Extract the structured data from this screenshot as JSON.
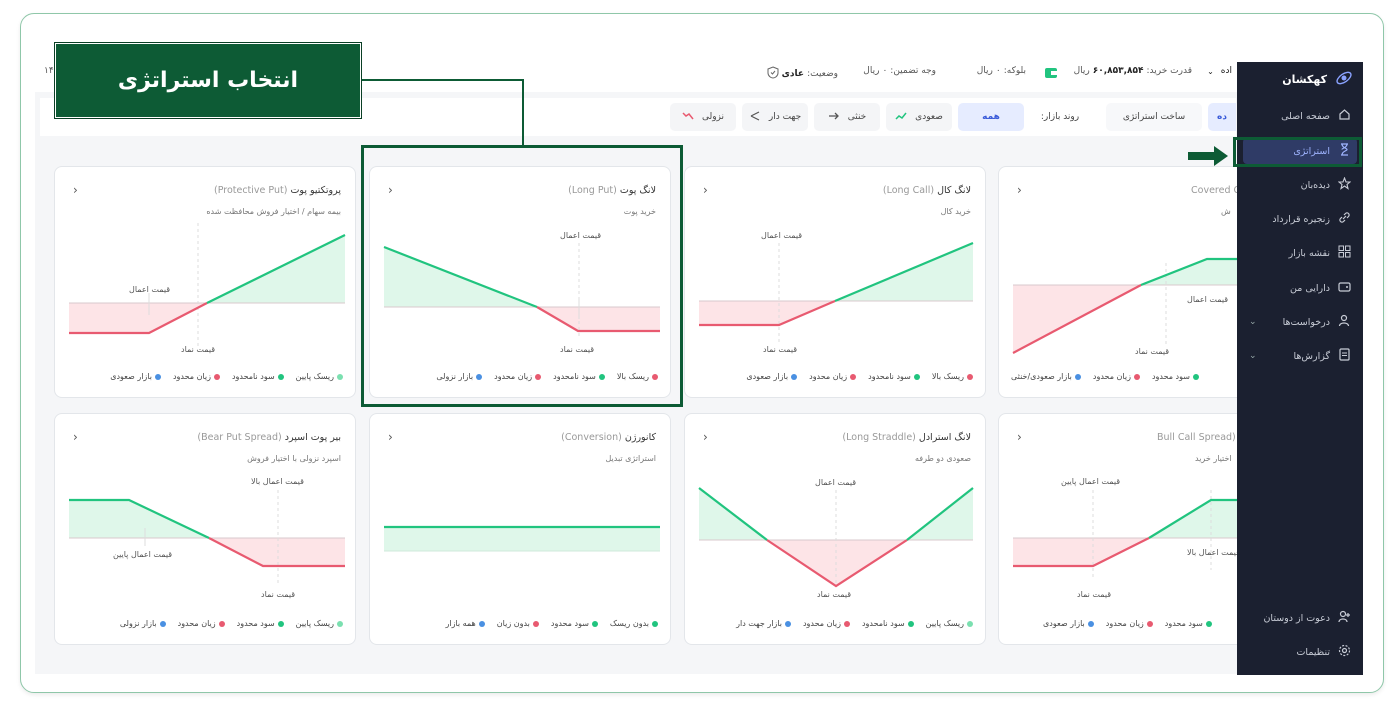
{
  "callout": {
    "text": "انتخاب استراتژی"
  },
  "sidebar": {
    "brand": "کهکشان",
    "items": [
      {
        "label": "صفحه اصلی",
        "icon": "home-icon"
      },
      {
        "label": "استراتژی",
        "icon": "hourglass-icon",
        "active": true
      },
      {
        "label": "دیده‌بان",
        "icon": "star-icon"
      },
      {
        "label": "زنجیره قرارداد",
        "icon": "link-icon"
      },
      {
        "label": "نقشه بازار",
        "icon": "grid-icon"
      },
      {
        "label": "دارایی من",
        "icon": "wallet-icon"
      },
      {
        "label": "درخواست‌ها",
        "icon": "requests-icon",
        "expandable": true
      },
      {
        "label": "گزارش‌ها",
        "icon": "report-icon",
        "expandable": true
      }
    ],
    "bottom": [
      {
        "label": "دعوت از دوستان",
        "icon": "add-user-icon"
      },
      {
        "label": "تنظیمات",
        "icon": "gear-icon"
      }
    ]
  },
  "topbar": {
    "partial_left": "۱۴",
    "account_partial": "اده",
    "buying_power_label": "قدرت خرید:",
    "buying_power_value": "۶۰,۸۵۳,۸۵۴",
    "currency": "ریال",
    "blocked_label": "بلوکه:",
    "blocked_value": "۰",
    "margin_label": "وجه تضمین:",
    "margin_value": "۰",
    "status_label": "وضعیت:",
    "status_value": "عادی"
  },
  "filters": {
    "partial_tab": "ده",
    "build_strategy": "ساخت استراتژی",
    "market_trend_label": "روند بازار:",
    "buttons": [
      {
        "label": "همه",
        "selected": true
      },
      {
        "label": "صعودی",
        "icon": "trend-up-icon"
      },
      {
        "label": "خنثی",
        "icon": "arrow-right-icon"
      },
      {
        "label": "جهت دار",
        "icon": "directional-icon"
      },
      {
        "label": "نزولی",
        "icon": "trend-down-icon"
      }
    ]
  },
  "cards": [
    {
      "title": "لانگ پوت",
      "en": "(Long Put)",
      "sub": "خرید پوت",
      "labels": [
        "قیمت اعمال",
        "قیمت نماد"
      ],
      "legend": [
        {
          "t": "ریسک بالا",
          "c": "#e85a70"
        },
        {
          "t": "سود نامحدود",
          "c": "#21c47f"
        },
        {
          "t": "زیان محدود",
          "c": "#e85a70"
        },
        {
          "t": "بازار نزولی",
          "c": "#4a90e2"
        }
      ]
    },
    {
      "title": "لانگ کال",
      "en": "(Long Call)",
      "sub": "خرید کال",
      "labels": [
        "قیمت اعمال",
        "قیمت نماد"
      ],
      "legend": [
        {
          "t": "ریسک بالا",
          "c": "#e85a70"
        },
        {
          "t": "سود نامحدود",
          "c": "#21c47f"
        },
        {
          "t": "زیان محدود",
          "c": "#e85a70"
        },
        {
          "t": "بازار صعودی",
          "c": "#4a90e2"
        }
      ]
    },
    {
      "title": "پروتکتیو پوت",
      "en": "(Protective Put)",
      "sub": "بیمه سهام / اختیار فروش محافظت شده",
      "labels": [
        "قیمت اعمال",
        "قیمت نماد"
      ],
      "legend": [
        {
          "t": "ریسک پایین",
          "c": "#7be0b0"
        },
        {
          "t": "سود نامحدود",
          "c": "#21c47f"
        },
        {
          "t": "زیان محدود",
          "c": "#e85a70"
        },
        {
          "t": "بازار صعودی",
          "c": "#4a90e2"
        }
      ]
    },
    {
      "title": "",
      "en": "Covered C",
      "sub": "ش",
      "labels": [
        "قیمت اعمال",
        "قیمت نماد"
      ],
      "legend": [
        {
          "t": "",
          "c": "#21c47f"
        },
        {
          "t": "سود محدود",
          "c": "#21c47f"
        },
        {
          "t": "زیان محدود",
          "c": "#e85a70"
        },
        {
          "t": "بازار صعودی/خنثی",
          "c": "#4a90e2"
        }
      ]
    },
    {
      "title": "کانورژن",
      "en": "(Conversion)",
      "sub": "استراتژی تبدیل",
      "labels": [],
      "legend": [
        {
          "t": "بدون ریسک",
          "c": "#21c47f"
        },
        {
          "t": "سود محدود",
          "c": "#21c47f"
        },
        {
          "t": "بدون زیان",
          "c": "#e85a70"
        },
        {
          "t": "همه بازار",
          "c": "#4a90e2"
        }
      ]
    },
    {
      "title": "لانگ استرادل",
      "en": "(Long Straddle)",
      "sub": "صعودی دو طرفه",
      "labels": [
        "قیمت اعمال",
        "قیمت نماد"
      ],
      "legend": [
        {
          "t": "ریسک پایین",
          "c": "#7be0b0"
        },
        {
          "t": "سود نامحدود",
          "c": "#21c47f"
        },
        {
          "t": "زیان محدود",
          "c": "#e85a70"
        },
        {
          "t": "بازار جهت دار",
          "c": "#4a90e2"
        }
      ]
    },
    {
      "title": "بیر پوت اسپرد",
      "en": "(Bear Put Spread)",
      "sub": "اسپرد نزولی با اختیار فروش",
      "labels": [
        "قیمت اعمال بالا",
        "قیمت اعمال پایین",
        "قیمت نماد"
      ],
      "legend": [
        {
          "t": "ریسک پایین",
          "c": "#7be0b0"
        },
        {
          "t": "سود محدود",
          "c": "#21c47f"
        },
        {
          "t": "زیان محدود",
          "c": "#e85a70"
        },
        {
          "t": "بازار نزولی",
          "c": "#4a90e2"
        }
      ]
    },
    {
      "title": "",
      "en": "(Bull Call Spread",
      "sub": "اختیار خرید",
      "labels": [
        "قیمت اعمال پایین",
        "قیمت اعمال بالا",
        "قیمت نماد"
      ],
      "legend": [
        {
          "t": "سود محدود",
          "c": "#21c47f"
        },
        {
          "t": "زیان محدود",
          "c": "#e85a70"
        },
        {
          "t": "بازار صعودی",
          "c": "#4a90e2"
        }
      ]
    }
  ]
}
